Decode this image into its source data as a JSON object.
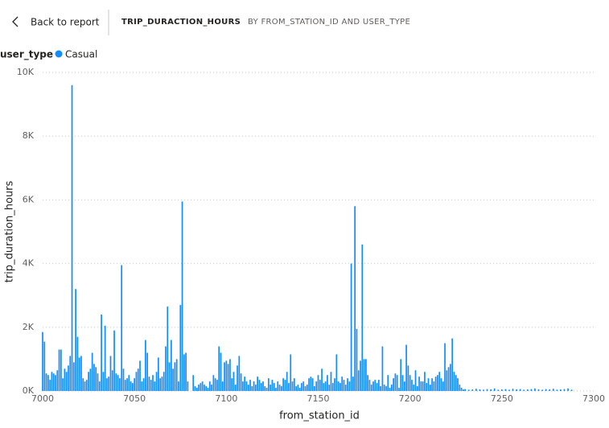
{
  "header": {
    "back": "Back to report",
    "title": "TRIP_DURACTION_HOURS",
    "subtitle": "BY FROM_STATION_ID AND USER_TYPE"
  },
  "chart_data": {
    "type": "bar",
    "legend_title": "user_type",
    "xlabel": "from_station_id",
    "ylabel": "trip_duration_hours",
    "xlim": [
      7000,
      7300
    ],
    "xticks": [
      7000,
      7050,
      7100,
      7150,
      7200,
      7250,
      7300
    ],
    "ylim": [
      0,
      10000
    ],
    "yticks": [
      {
        "value": 0,
        "label": "0K"
      },
      {
        "value": 2000,
        "label": "2K"
      },
      {
        "value": 4000,
        "label": "4K"
      },
      {
        "value": 6000,
        "label": "6K"
      },
      {
        "value": 8000,
        "label": "8K"
      },
      {
        "value": 10000,
        "label": "10K"
      }
    ],
    "grid": true,
    "x": [
      7000,
      7001,
      7002,
      7003,
      7004,
      7005,
      7006,
      7007,
      7008,
      7009,
      7010,
      7011,
      7012,
      7013,
      7014,
      7015,
      7016,
      7017,
      7018,
      7019,
      7020,
      7021,
      7022,
      7023,
      7024,
      7025,
      7026,
      7027,
      7028,
      7029,
      7030,
      7031,
      7032,
      7033,
      7034,
      7035,
      7036,
      7037,
      7038,
      7039,
      7040,
      7041,
      7042,
      7043,
      7044,
      7045,
      7046,
      7047,
      7048,
      7049,
      7050,
      7051,
      7052,
      7053,
      7054,
      7055,
      7056,
      7057,
      7058,
      7059,
      7060,
      7061,
      7062,
      7063,
      7064,
      7065,
      7066,
      7067,
      7068,
      7069,
      7070,
      7071,
      7072,
      7073,
      7074,
      7075,
      7076,
      7077,
      7078,
      7079,
      7082,
      7083,
      7084,
      7085,
      7086,
      7087,
      7088,
      7089,
      7090,
      7091,
      7092,
      7093,
      7094,
      7095,
      7096,
      7097,
      7098,
      7099,
      7100,
      7101,
      7102,
      7103,
      7104,
      7105,
      7106,
      7107,
      7108,
      7109,
      7110,
      7111,
      7112,
      7113,
      7114,
      7115,
      7116,
      7117,
      7118,
      7119,
      7120,
      7121,
      7122,
      7123,
      7124,
      7125,
      7126,
      7127,
      7128,
      7129,
      7130,
      7131,
      7132,
      7133,
      7134,
      7135,
      7136,
      7137,
      7138,
      7139,
      7140,
      7141,
      7142,
      7143,
      7144,
      7145,
      7146,
      7147,
      7148,
      7149,
      7150,
      7151,
      7152,
      7153,
      7154,
      7155,
      7156,
      7157,
      7158,
      7159,
      7160,
      7161,
      7162,
      7163,
      7164,
      7165,
      7166,
      7167,
      7168,
      7169,
      7170,
      7171,
      7172,
      7173,
      7174,
      7175,
      7176,
      7177,
      7178,
      7179,
      7180,
      7181,
      7182,
      7183,
      7184,
      7185,
      7186,
      7187,
      7188,
      7189,
      7190,
      7191,
      7192,
      7193,
      7194,
      7195,
      7196,
      7197,
      7198,
      7199,
      7200,
      7201,
      7202,
      7203,
      7204,
      7205,
      7206,
      7207,
      7208,
      7209,
      7210,
      7211,
      7212,
      7213,
      7214,
      7215,
      7216,
      7217,
      7218,
      7219,
      7220,
      7221,
      7222,
      7223,
      7224,
      7225,
      7226,
      7227,
      7228,
      7229,
      7230,
      7232,
      7234,
      7236,
      7238,
      7240,
      7242,
      7244,
      7246,
      7248,
      7250,
      7252,
      7254,
      7256,
      7258,
      7260,
      7262,
      7264,
      7266,
      7268,
      7270,
      7272,
      7274,
      7276,
      7278,
      7280,
      7282,
      7284,
      7286,
      7288
    ],
    "series": [
      {
        "name": "Casual",
        "color": "#118dff",
        "values": [
          1850,
          1550,
          550,
          500,
          350,
          600,
          550,
          500,
          650,
          1300,
          1300,
          400,
          700,
          600,
          800,
          1100,
          9600,
          900,
          3200,
          1700,
          1050,
          1100,
          400,
          300,
          350,
          600,
          700,
          1200,
          850,
          750,
          550,
          300,
          2400,
          600,
          2050,
          400,
          450,
          1100,
          650,
          1900,
          550,
          500,
          400,
          3950,
          700,
          350,
          400,
          500,
          300,
          250,
          400,
          600,
          700,
          950,
          300,
          400,
          1600,
          1200,
          450,
          350,
          500,
          300,
          600,
          1050,
          400,
          450,
          600,
          1400,
          2650,
          900,
          1600,
          700,
          900,
          1000,
          300,
          2700,
          5950,
          1150,
          1200,
          300,
          500,
          150,
          100,
          200,
          250,
          300,
          200,
          150,
          100,
          300,
          200,
          500,
          400,
          350,
          1400,
          1200,
          300,
          900,
          950,
          850,
          1000,
          400,
          600,
          200,
          800,
          1100,
          550,
          300,
          450,
          300,
          200,
          350,
          150,
          300,
          200,
          450,
          350,
          250,
          300,
          150,
          100,
          400,
          200,
          350,
          250,
          100,
          300,
          200,
          150,
          400,
          350,
          600,
          250,
          1150,
          300,
          400,
          150,
          200,
          100,
          250,
          300,
          150,
          200,
          400,
          450,
          400,
          150,
          300,
          500,
          350,
          700,
          250,
          300,
          500,
          200,
          600,
          250,
          400,
          1150,
          300,
          250,
          450,
          350,
          200,
          400,
          300,
          4000,
          450,
          5800,
          1950,
          650,
          950,
          4600,
          1000,
          1000,
          500,
          350,
          200,
          300,
          350,
          250,
          350,
          150,
          1400,
          200,
          150,
          500,
          100,
          200,
          400,
          550,
          500,
          100,
          1000,
          500,
          300,
          1450,
          800,
          500,
          350,
          200,
          650,
          150,
          450,
          300,
          300,
          600,
          250,
          400,
          200,
          400,
          300,
          450,
          500,
          600,
          400,
          300,
          1500,
          650,
          750,
          850,
          1650,
          600,
          500,
          400,
          200,
          100,
          50,
          60,
          40,
          50,
          70,
          50,
          40,
          60,
          50,
          80,
          40,
          50,
          60,
          40,
          70,
          50,
          60,
          40,
          50,
          60,
          80,
          50,
          40,
          60,
          50,
          70,
          40,
          50,
          60,
          80,
          40
        ]
      }
    ]
  }
}
